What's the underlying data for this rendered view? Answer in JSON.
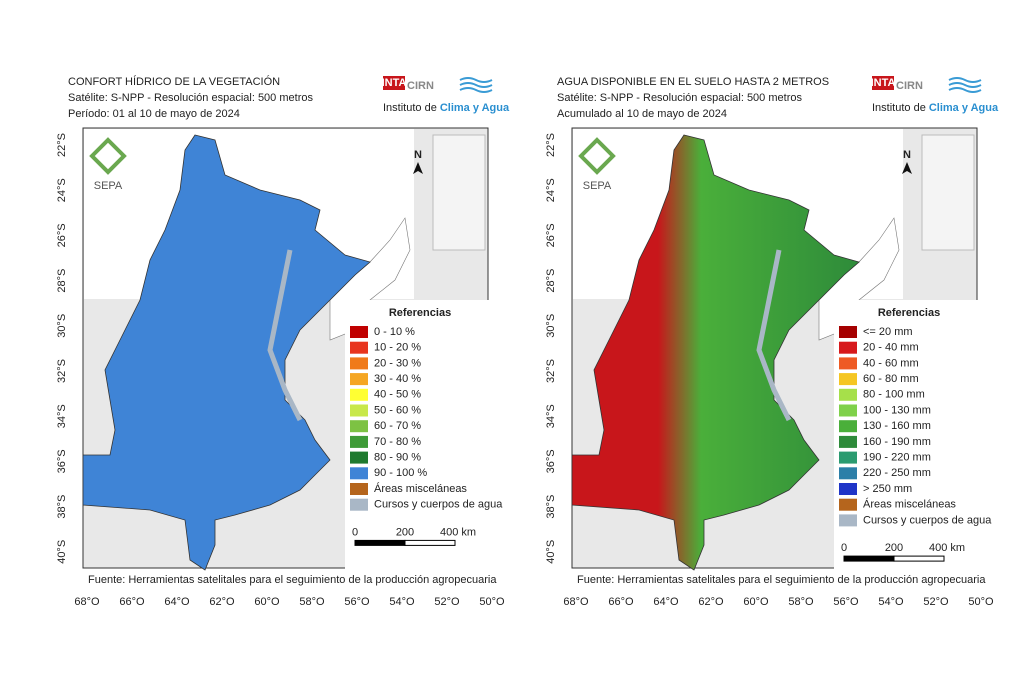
{
  "panels": [
    {
      "title": [
        "CONFORT HÍDRICO DE LA VEGETACIÓN",
        "Satélite: S-NPP - Resolución espacial: 500 metros",
        "Período: 01 al 10 de mayo de 2024"
      ],
      "logo": {
        "inta": "INTA",
        "cirn": "CIRN",
        "institute": "Instituto de",
        "highlight": "Clima y Agua"
      },
      "sepa": "SEPA",
      "north": "N",
      "lat_labels": [
        "22°S",
        "24°S",
        "26°S",
        "28°S",
        "30°S",
        "32°S",
        "34°S",
        "36°S",
        "38°S",
        "40°S"
      ],
      "lon_labels": [
        "68°O",
        "66°O",
        "64°O",
        "62°O",
        "60°O",
        "58°O",
        "56°O",
        "54°O",
        "52°O",
        "50°O"
      ],
      "map_colors": [
        "#3f84d6",
        "#3f84d6",
        "#3f84d6"
      ],
      "legend": {
        "title": "Referencias",
        "items": [
          {
            "label": "0 - 10 %",
            "color": "#c00000"
          },
          {
            "label": "10 - 20 %",
            "color": "#e8351e"
          },
          {
            "label": "20 - 30 %",
            "color": "#f07a1a"
          },
          {
            "label": "30 - 40 %",
            "color": "#f5a623"
          },
          {
            "label": "40 - 50 %",
            "color": "#ffff33"
          },
          {
            "label": "50 - 60 %",
            "color": "#c8e84a"
          },
          {
            "label": "60 - 70 %",
            "color": "#7dc243"
          },
          {
            "label": "70 - 80 %",
            "color": "#3e9b37"
          },
          {
            "label": "80 - 90 %",
            "color": "#1f7a2f"
          },
          {
            "label": "90 - 100 %",
            "color": "#3f84d6"
          },
          {
            "label": "Áreas misceláneas",
            "color": "#b5651d"
          },
          {
            "label": "Cursos y cuerpos de agua",
            "color": "#a9b7c6"
          }
        ]
      },
      "scale": [
        "0",
        "200",
        "400 km"
      ],
      "source": "Fuente: Herramientas satelitales para el seguimiento de la producción agropecuaria"
    },
    {
      "title": [
        "AGUA DISPONIBLE EN EL SUELO HASTA 2 METROS",
        "Satélite: S-NPP - Resolución espacial: 500 metros",
        "Acumulado al 10 de mayo de 2024"
      ],
      "logo": {
        "inta": "INTA",
        "cirn": "CIRN",
        "institute": "Instituto de",
        "highlight": "Clima y Agua"
      },
      "sepa": "SEPA",
      "north": "N",
      "lat_labels": [
        "22°S",
        "24°S",
        "26°S",
        "28°S",
        "30°S",
        "32°S",
        "34°S",
        "36°S",
        "38°S",
        "40°S"
      ],
      "lon_labels": [
        "68°O",
        "66°O",
        "64°O",
        "62°O",
        "60°O",
        "58°O",
        "56°O",
        "54°O",
        "52°O",
        "50°O"
      ],
      "map_colors": [
        "#c8161b",
        "#4aaf3a",
        "#2e8b3a"
      ],
      "legend": {
        "title": "Referencias",
        "items": [
          {
            "label": "<= 20 mm",
            "color": "#a50000"
          },
          {
            "label": "20 - 40 mm",
            "color": "#d7191c"
          },
          {
            "label": "40 - 60 mm",
            "color": "#ee5a24"
          },
          {
            "label": "60 - 80 mm",
            "color": "#f5c623"
          },
          {
            "label": "80 - 100 mm",
            "color": "#a6e04a"
          },
          {
            "label": "100 - 130 mm",
            "color": "#7fd14a"
          },
          {
            "label": "130 - 160 mm",
            "color": "#4aaf3a"
          },
          {
            "label": "160 - 190 mm",
            "color": "#2e8b3a"
          },
          {
            "label": "190 - 220 mm",
            "color": "#2b9b70"
          },
          {
            "label": "220 - 250 mm",
            "color": "#2c7fa8"
          },
          {
            "label": "> 250 mm",
            "color": "#1f35c8"
          },
          {
            "label": "Áreas misceláneas",
            "color": "#b5651d"
          },
          {
            "label": "Cursos y cuerpos de agua",
            "color": "#a9b7c6"
          }
        ]
      },
      "scale": [
        "0",
        "200",
        "400 km"
      ],
      "source": "Fuente: Herramientas satelitales para el seguimiento de la producción agropecuaria"
    }
  ]
}
